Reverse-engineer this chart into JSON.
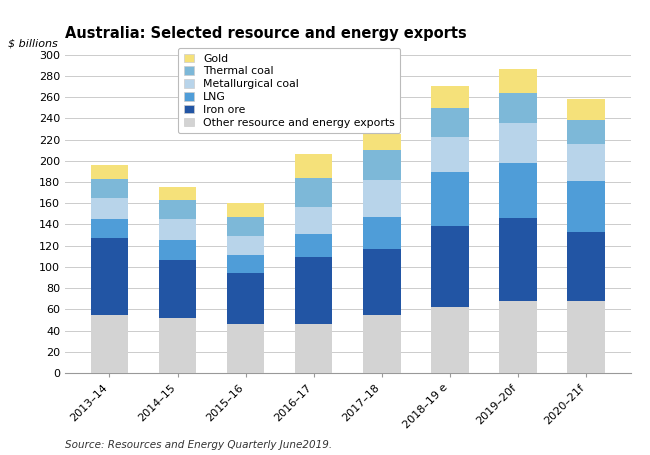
{
  "title": "Australia: Selected resource and energy exports",
  "ylabel": "$ billions",
  "source": "Source: Resources and Energy Quarterly June2019.",
  "categories": [
    "2013–14",
    "2014–15",
    "2015–16",
    "2016–17",
    "2017–18",
    "2018–19 e",
    "2019–20f",
    "2020–21f"
  ],
  "series": {
    "Other resource and energy exports": [
      55,
      52,
      46,
      46,
      55,
      62,
      68,
      68
    ],
    "Iron ore": [
      72,
      55,
      48,
      63,
      62,
      77,
      78,
      65
    ],
    "LNG": [
      18,
      18,
      17,
      22,
      30,
      50,
      52,
      48
    ],
    "Metallurgical coal": [
      20,
      20,
      18,
      25,
      35,
      33,
      38,
      35
    ],
    "Thermal coal": [
      18,
      18,
      18,
      28,
      28,
      28,
      28,
      22
    ],
    "Gold": [
      13,
      12,
      13,
      22,
      15,
      20,
      22,
      20
    ]
  },
  "colors": {
    "Other resource and energy exports": "#d3d3d3",
    "Iron ore": "#2255a4",
    "LNG": "#4f9dd8",
    "Metallurgical coal": "#b8d4ea",
    "Thermal coal": "#7db8d8",
    "Gold": "#f5e17a"
  },
  "ylim": [
    0,
    300
  ],
  "yticks": [
    0,
    20,
    40,
    60,
    80,
    100,
    120,
    140,
    160,
    180,
    200,
    220,
    240,
    260,
    280,
    300
  ],
  "stack_order": [
    "Other resource and energy exports",
    "Iron ore",
    "LNG",
    "Metallurgical coal",
    "Thermal coal",
    "Gold"
  ],
  "legend_order": [
    "Gold",
    "Thermal coal",
    "Metallurgical coal",
    "LNG",
    "Iron ore",
    "Other resource and energy exports"
  ],
  "bar_width": 0.55,
  "figsize": [
    6.5,
    4.55
  ],
  "dpi": 100
}
